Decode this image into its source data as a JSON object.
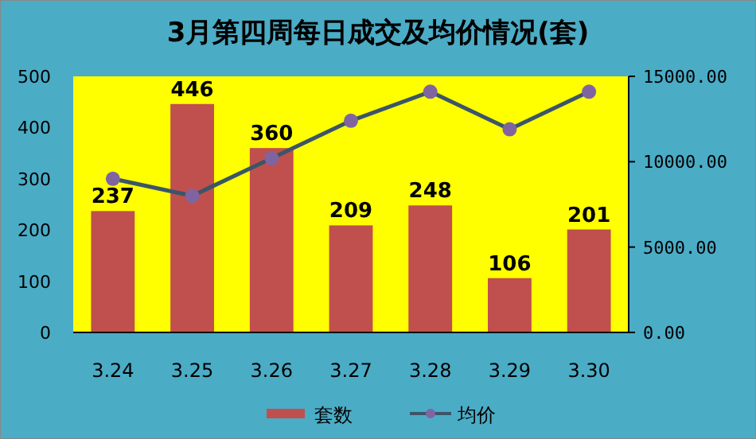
{
  "chart_data": {
    "type": "bar",
    "title": "3月第四周每日成交及均价情况(套)",
    "categories": [
      "3.24",
      "3.25",
      "3.26",
      "3.27",
      "3.28",
      "3.29",
      "3.30"
    ],
    "series": [
      {
        "name": "套数",
        "color": "#c0504d",
        "values": [
          237,
          446,
          360,
          209,
          248,
          106,
          201
        ],
        "value_labels": [
          "237",
          "446",
          "360",
          "209",
          "248",
          "106",
          "201"
        ]
      },
      {
        "name": "均价",
        "type": "line",
        "axis": "y2",
        "color": "#3b5568",
        "marker": "circle",
        "values": [
          9000,
          8000,
          10200,
          12400,
          14100,
          11900,
          14100
        ]
      }
    ],
    "ylim": [
      0,
      500
    ],
    "yticks": [
      0,
      100,
      200,
      300,
      400,
      500
    ],
    "y2lim": [
      0,
      15000
    ],
    "y2ticks": [
      {
        "value": 0,
        "label": "0.00"
      },
      {
        "value": 5000,
        "label": "5000.00"
      },
      {
        "value": 10000,
        "label": "10000.00"
      },
      {
        "value": 15000,
        "label": "15000.00"
      }
    ],
    "grid": false,
    "legend": "bottom"
  }
}
